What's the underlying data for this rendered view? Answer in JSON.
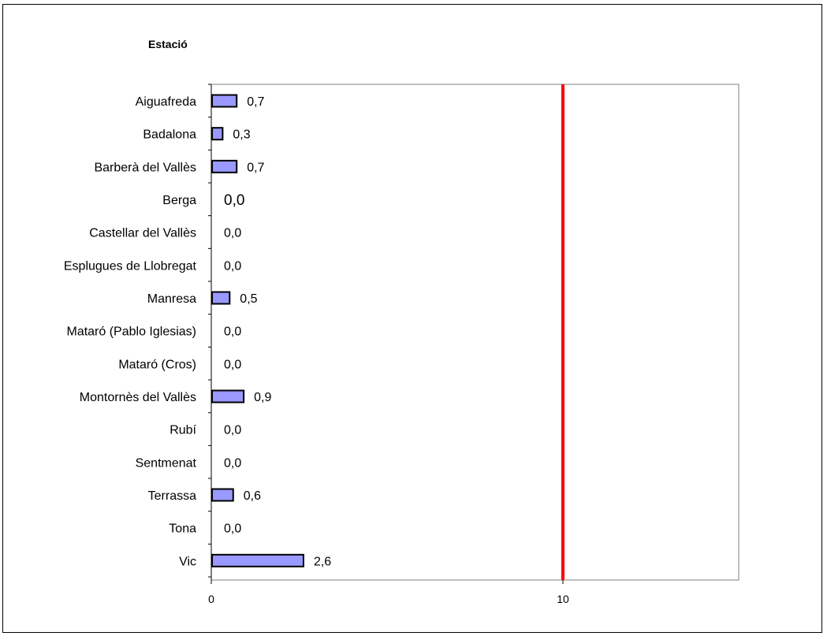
{
  "chart_data": {
    "type": "bar",
    "orientation": "horizontal",
    "title": "Estació",
    "categories": [
      "Aiguafreda",
      "Badalona",
      "Barberà del Vallès",
      "Berga",
      "Castellar del Vallès",
      "Esplugues de Llobregat",
      "Manresa",
      "Mataró (Pablo Iglesias)",
      "Mataró (Cros)",
      "Montornès del Vallès",
      "Rubí",
      "Sentmenat",
      "Terrassa",
      "Tona",
      "Vic"
    ],
    "values": [
      0.7,
      0.3,
      0.7,
      0.0,
      0.0,
      0.0,
      0.5,
      0.0,
      0.0,
      0.9,
      0.0,
      0.0,
      0.6,
      0.0,
      2.6
    ],
    "data_labels": [
      "0,7",
      "0,3",
      "0,7",
      "0,0",
      "0,0",
      "0,0",
      "0,5",
      "0,0",
      "0,0",
      "0,9",
      "0,0",
      "0,0",
      "0,6",
      "0,0",
      "2,6"
    ],
    "xlim": [
      0,
      15
    ],
    "x_ticks": [
      0,
      10
    ],
    "x_tick_labels": [
      "0",
      "10"
    ],
    "reference_line": {
      "value": 10,
      "color": "#ff0000"
    },
    "bar_color": "#9999ff",
    "bar_edge_color": "#000000",
    "grid": false
  }
}
